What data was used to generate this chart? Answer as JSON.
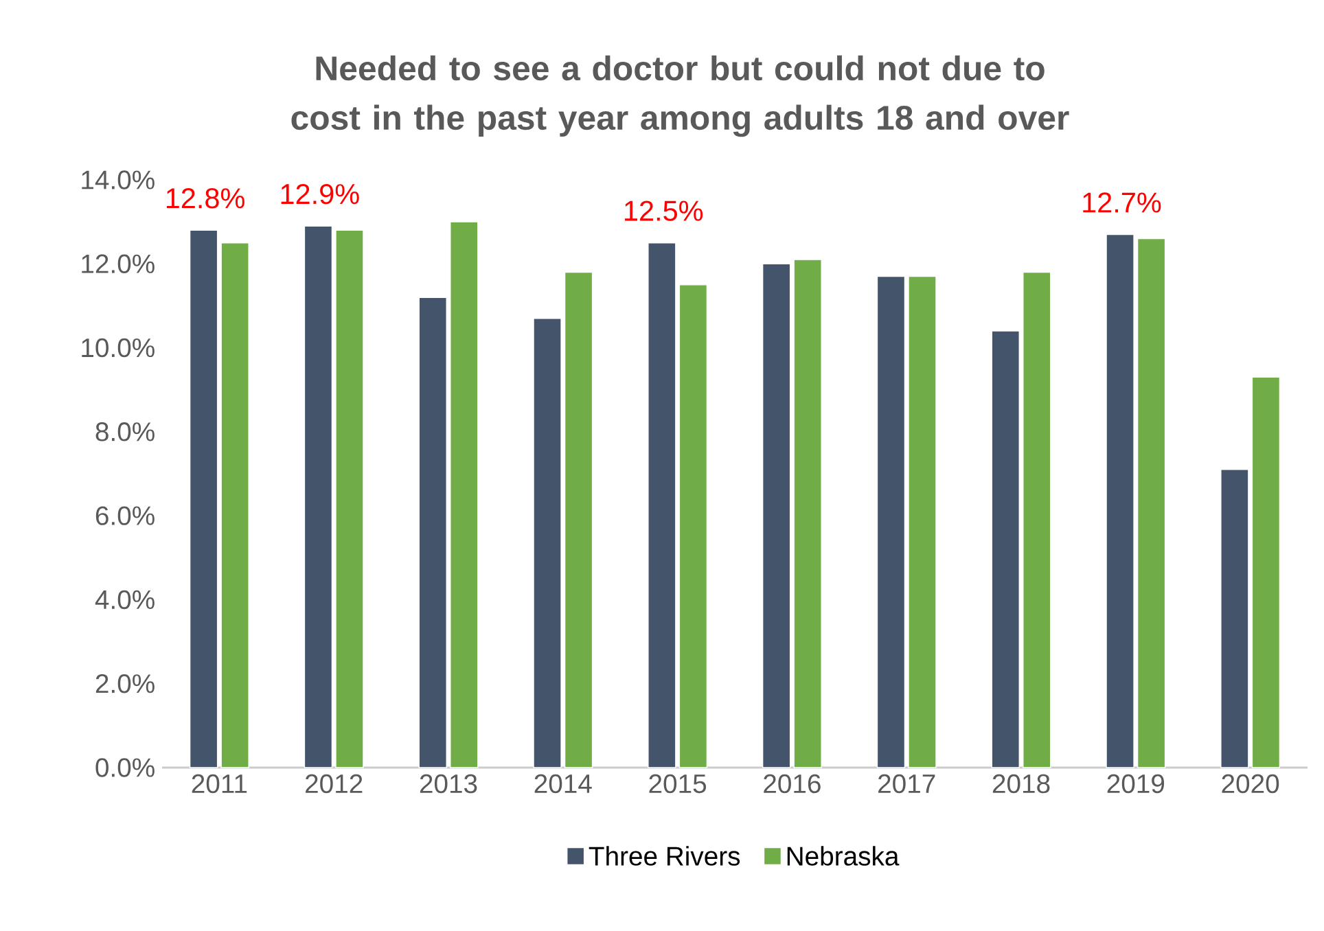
{
  "chart_data": {
    "type": "bar",
    "title": "Needed to see a doctor but could not due to cost in the past year among adults 18 and over",
    "categories": [
      "2011",
      "2012",
      "2013",
      "2014",
      "2015",
      "2016",
      "2017",
      "2018",
      "2019",
      "2020"
    ],
    "series": [
      {
        "name": "Three Rivers",
        "color": "#44546a",
        "values": [
          12.8,
          12.9,
          11.2,
          10.7,
          12.5,
          12.0,
          11.7,
          10.4,
          12.7,
          7.1
        ],
        "value_labels": [
          "12.8%",
          "12.9%",
          null,
          null,
          "12.5%",
          null,
          null,
          null,
          "12.7%",
          null
        ]
      },
      {
        "name": "Nebraska",
        "color": "#70ad47",
        "values": [
          12.5,
          12.8,
          13.0,
          11.8,
          11.5,
          12.1,
          11.7,
          11.8,
          12.6,
          9.3
        ]
      }
    ],
    "ylim": [
      0,
      14
    ],
    "yticks": [
      {
        "value": 0,
        "label": "0.0%"
      },
      {
        "value": 2,
        "label": "2.0%"
      },
      {
        "value": 4,
        "label": "4.0%"
      },
      {
        "value": 6,
        "label": "6.0%"
      },
      {
        "value": 8,
        "label": "8.0%"
      },
      {
        "value": 10,
        "label": "10.0%"
      },
      {
        "value": 12,
        "label": "12.0%"
      },
      {
        "value": 14,
        "label": "14.0%"
      }
    ],
    "legend": "bottom"
  }
}
